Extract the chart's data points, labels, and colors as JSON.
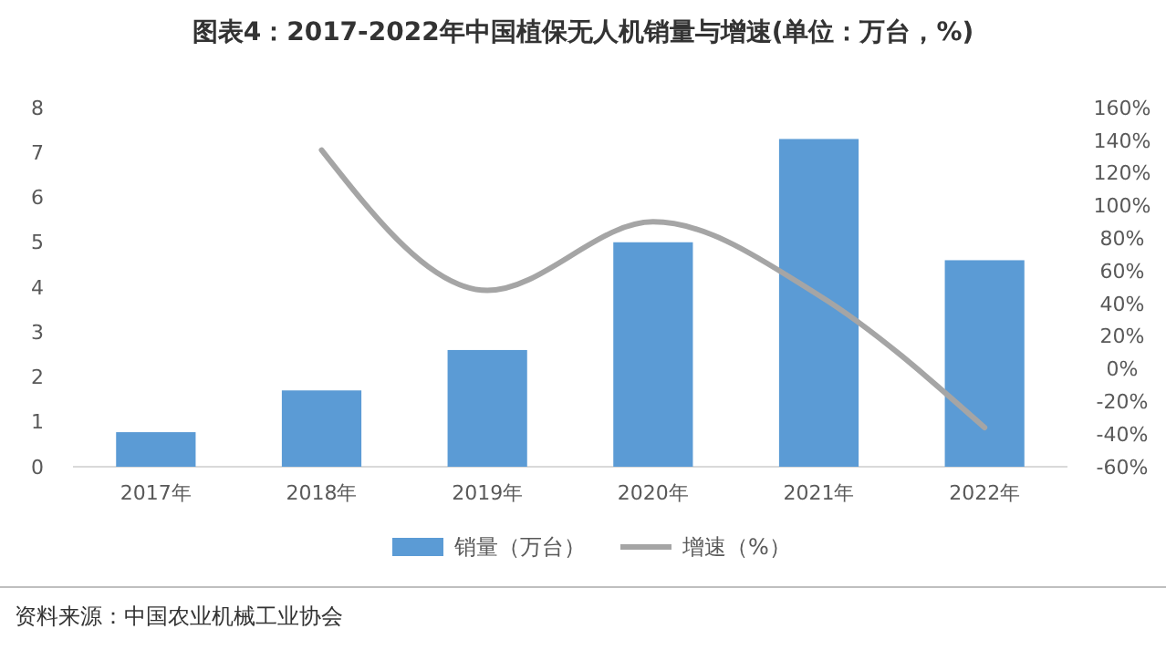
{
  "chart_data": {
    "type": "bar",
    "title": "图表4：2017-2022年中国植保无人机销量与增速(单位：万台，%)",
    "categories": [
      "2017年",
      "2018年",
      "2019年",
      "2020年",
      "2021年",
      "2022年"
    ],
    "series": [
      {
        "name": "销量（万台）",
        "color": "#5b9bd5",
        "values": [
          0.77,
          1.7,
          2.6,
          5.0,
          7.3,
          4.6
        ]
      },
      {
        "name": "增速（%）",
        "type": "line",
        "axis": "y2",
        "color": "#a5a5a5",
        "values": [
          null,
          134,
          48,
          90,
          45,
          -36
        ]
      }
    ],
    "ylim": [
      0,
      8
    ],
    "yticks": [
      0,
      1,
      2,
      3,
      4,
      5,
      6,
      7,
      8
    ],
    "y2lim": [
      -60,
      160
    ],
    "y2ticks": [
      {
        "value": -60,
        "label": "-60%"
      },
      {
        "value": -40,
        "label": "-40%"
      },
      {
        "value": -20,
        "label": "-20%"
      },
      {
        "value": 0,
        "label": "0%"
      },
      {
        "value": 20,
        "label": "20%"
      },
      {
        "value": 40,
        "label": "40%"
      },
      {
        "value": 60,
        "label": "60%"
      },
      {
        "value": 80,
        "label": "80%"
      },
      {
        "value": 100,
        "label": "100%"
      },
      {
        "value": 120,
        "label": "120%"
      },
      {
        "value": 140,
        "label": "140%"
      },
      {
        "value": 160,
        "label": "160%"
      }
    ],
    "legend": "bottom",
    "marker": "none",
    "annotations": [
      "资料来源：中国农业机械工业协会"
    ]
  }
}
